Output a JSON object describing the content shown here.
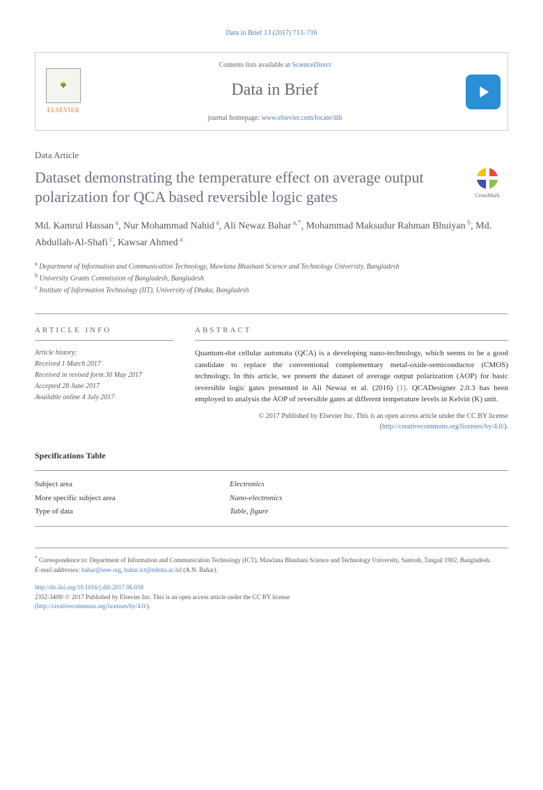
{
  "citation": "Data in Brief 13 (2017) 713–716",
  "header": {
    "contents_prefix": "Contents lists available at ",
    "contents_link": "ScienceDirect",
    "journal": "Data in Brief",
    "homepage_prefix": "journal homepage: ",
    "homepage_link": "www.elsevier.com/locate/dib",
    "elsevier": "ELSEVIER"
  },
  "article_type": "Data Article",
  "title": "Dataset demonstrating the temperature effect on average output polarization for QCA based reversible logic gates",
  "crossmark": "CrossMark",
  "authors": [
    {
      "name": "Md. Kamrul Hassan",
      "sup": "a"
    },
    {
      "name": "Nur Mohammad Nahid",
      "sup": "a"
    },
    {
      "name": "Ali Newaz Bahar",
      "sup": "a,*"
    },
    {
      "name": "Mohammad Maksudur Rahman Bhuiyan",
      "sup": "b"
    },
    {
      "name": "Md. Abdullah-Al-Shafi",
      "sup": "c"
    },
    {
      "name": "Kawsar Ahmed",
      "sup": "a"
    }
  ],
  "affiliations": [
    {
      "sup": "a",
      "text": "Department of Information and Communication Technology, Mawlana Bhashani Science and Technology University, Bangladesh"
    },
    {
      "sup": "b",
      "text": "University Grants Commission of Bangladesh, Bangladesh"
    },
    {
      "sup": "c",
      "text": "Institute of Information Technology (IIT), University of Dhaka, Bangladesh"
    }
  ],
  "info_head": "ARTICLE INFO",
  "abstract_head": "ABSTRACT",
  "history": {
    "label": "Article history:",
    "received": "Received 1 March 2017",
    "revised": "Received in revised form 30 May 2017",
    "accepted": "Accepted 28 June 2017",
    "online": "Available online 4 July 2017"
  },
  "abstract": "Quantum-dot cellular automata (QCA) is a developing nano-technology, which seems to be a good candidate to replace the conventional complementary metal-oxide-semiconductor (CMOS) technology. In this article, we present the dataset of average output polarization (AOP) for basic reversible logic gates presented in Ali Newaz et al. (2016) [1]. QCADesigner 2.0.3 has been employed to analysis the AOP of reversible gates at different temperature levels in Kelvin (K) unit.",
  "ref_link": "[1]",
  "copyright": {
    "line1": "© 2017 Published by Elsevier Inc. This is an open access article under the CC BY license",
    "link": "http://creativecommons.org/licenses/by/4.0/"
  },
  "spec_heading": "Specifications Table",
  "spec_rows": [
    {
      "key": "Subject area",
      "val": "Electronics"
    },
    {
      "key": "More specific subject area",
      "val": "Nano-electronics"
    },
    {
      "key": "Type of data",
      "val": "Table, figure"
    }
  ],
  "footnotes": {
    "corr_marker": "*",
    "corr_text": "Correspondence to: Department of Information and Communication Technology (ICT), Mawlana Bhashani Science and Technology University, Santosh, Tangail 1902, Bangladesh.",
    "email_label": "E-mail addresses: ",
    "emails": [
      "bahar@ieee.org",
      "bahar.ict@mbstu.ac.bd"
    ],
    "email_suffix": " (A.N. Bahar)."
  },
  "doi": {
    "link": "http://dx.doi.org/10.1016/j.dib.2017.06.058",
    "issn": "2352-3409/",
    "text": "© 2017 Published by Elsevier Inc. This is an open access article under the CC BY license",
    "cc_link": "http://creativecommons.org/licenses/by/4.0/"
  }
}
